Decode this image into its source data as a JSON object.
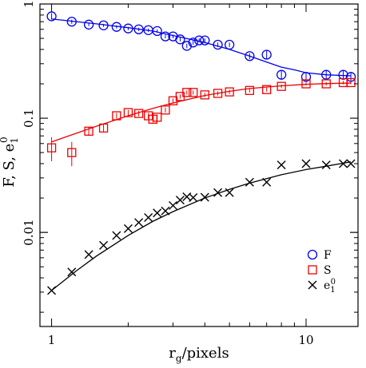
{
  "chart_data": {
    "type": "scatter",
    "title": "",
    "xlabel": {
      "main": "r",
      "sub": "g",
      "rest": "/pixels"
    },
    "ylabel": {
      "main": "F,  S,  e",
      "sub": "1",
      "sup": "0"
    },
    "xscale": "log",
    "yscale": "log",
    "xlim": [
      0.9,
      16
    ],
    "ylim": [
      0.0015,
      1.0
    ],
    "x_ticks": [
      {
        "value": 1,
        "label": "1"
      },
      {
        "value": 10,
        "label": "10"
      }
    ],
    "y_ticks": [
      {
        "value": 0.01,
        "label": "0.01"
      },
      {
        "value": 0.1,
        "label": "0.1"
      },
      {
        "value": 1,
        "label": "1"
      }
    ],
    "grid": false,
    "legend_position": "bottom-right",
    "series": [
      {
        "name": "F",
        "marker": "circle",
        "color": "#0000ee",
        "x": [
          1.0,
          1.2,
          1.4,
          1.6,
          1.8,
          2.0,
          2.2,
          2.4,
          2.6,
          2.8,
          3.0,
          3.2,
          3.4,
          3.6,
          3.8,
          4.0,
          4.5,
          5.0,
          6.0,
          7.0,
          8.0,
          10.0,
          12.0,
          14.0,
          15.0
        ],
        "y": [
          0.78,
          0.7,
          0.66,
          0.65,
          0.63,
          0.61,
          0.6,
          0.59,
          0.58,
          0.52,
          0.52,
          0.49,
          0.43,
          0.46,
          0.48,
          0.48,
          0.44,
          0.44,
          0.35,
          0.36,
          0.24,
          0.23,
          0.24,
          0.24,
          0.23
        ],
        "yerr": [
          0.05,
          0.03,
          0.02,
          0.02,
          0.02,
          0.02,
          0.02,
          0.02,
          0.02,
          0.02,
          0.02,
          0.02,
          0.02,
          0.02,
          0.02,
          0.02,
          0.02,
          0.02,
          0.02,
          0.03,
          0.02,
          0.02,
          0.02,
          0.02,
          0.02
        ],
        "fit": [
          [
            1.0,
            0.74
          ],
          [
            1.5,
            0.67
          ],
          [
            2.0,
            0.62
          ],
          [
            2.5,
            0.58
          ],
          [
            3.0,
            0.53
          ],
          [
            4.0,
            0.46
          ],
          [
            5.0,
            0.4
          ],
          [
            6.0,
            0.35
          ],
          [
            7.0,
            0.31
          ],
          [
            8.0,
            0.28
          ],
          [
            9.0,
            0.265
          ],
          [
            10.0,
            0.25
          ],
          [
            12.0,
            0.24
          ],
          [
            15.0,
            0.235
          ]
        ]
      },
      {
        "name": "S",
        "marker": "square",
        "color": "#ee0000",
        "x": [
          1.0,
          1.2,
          1.4,
          1.6,
          1.8,
          2.0,
          2.2,
          2.4,
          2.5,
          2.6,
          2.8,
          3.0,
          3.2,
          3.4,
          3.6,
          4.0,
          4.5,
          5.0,
          6.0,
          7.0,
          8.0,
          10.0,
          12.0,
          14.0,
          15.0
        ],
        "y": [
          0.055,
          0.05,
          0.077,
          0.082,
          0.105,
          0.112,
          0.11,
          0.105,
          0.098,
          0.102,
          0.118,
          0.142,
          0.155,
          0.168,
          0.168,
          0.16,
          0.165,
          0.17,
          0.175,
          0.178,
          0.19,
          0.2,
          0.2,
          0.205,
          0.205
        ],
        "yerr": [
          0.013,
          0.012,
          0.007,
          0.007,
          0.006,
          0.006,
          0.006,
          0.006,
          0.006,
          0.006,
          0.006,
          0.007,
          0.007,
          0.007,
          0.007,
          0.007,
          0.007,
          0.007,
          0.007,
          0.007,
          0.007,
          0.007,
          0.007,
          0.007,
          0.007
        ],
        "fit": [
          [
            1.0,
            0.062
          ],
          [
            1.5,
            0.085
          ],
          [
            2.0,
            0.105
          ],
          [
            2.5,
            0.122
          ],
          [
            3.0,
            0.136
          ],
          [
            4.0,
            0.158
          ],
          [
            5.0,
            0.172
          ],
          [
            6.0,
            0.182
          ],
          [
            8.0,
            0.192
          ],
          [
            10.0,
            0.198
          ],
          [
            12.0,
            0.201
          ],
          [
            15.0,
            0.203
          ]
        ]
      },
      {
        "name": "e10",
        "label_main": "e",
        "label_sub": "1",
        "label_sup": "0",
        "marker": "x",
        "color": "#000000",
        "x": [
          1.0,
          1.2,
          1.4,
          1.6,
          1.8,
          2.0,
          2.2,
          2.4,
          2.6,
          2.8,
          3.0,
          3.2,
          3.4,
          3.6,
          4.0,
          4.5,
          5.0,
          6.0,
          7.0,
          8.0,
          10.0,
          12.0,
          14.0,
          15.0
        ],
        "y": [
          0.0031,
          0.0045,
          0.0064,
          0.0077,
          0.0094,
          0.0108,
          0.0122,
          0.0135,
          0.0148,
          0.0154,
          0.0172,
          0.0192,
          0.0205,
          0.0202,
          0.0203,
          0.0223,
          0.0223,
          0.0275,
          0.0275,
          0.039,
          0.04,
          0.039,
          0.04,
          0.04
        ],
        "fit": [
          [
            1.0,
            0.0031
          ],
          [
            1.25,
            0.0046
          ],
          [
            1.5,
            0.0062
          ],
          [
            2.0,
            0.0094
          ],
          [
            2.5,
            0.0125
          ],
          [
            3.0,
            0.0152
          ],
          [
            4.0,
            0.02
          ],
          [
            5.0,
            0.0238
          ],
          [
            6.0,
            0.027
          ],
          [
            8.0,
            0.032
          ],
          [
            10.0,
            0.0355
          ],
          [
            12.0,
            0.038
          ],
          [
            15.0,
            0.0415
          ]
        ]
      }
    ]
  }
}
